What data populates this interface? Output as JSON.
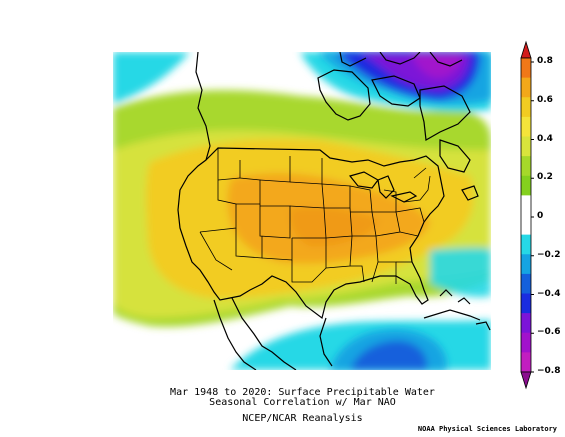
{
  "title_line1": "Mar 1948 to 2020: Surface Precipitable Water",
  "title_line2": "Seasonal Correlation w/ Mar NAO",
  "dataset": "NCEP/NCAR Reanalysis",
  "credit": "NOAA Physical Sciences Laboratory",
  "colorbar": {
    "ticks": [
      "0.8",
      "0.6",
      "0.4",
      "0.2",
      "0",
      "−0.2",
      "−0.4",
      "−0.6",
      "−0.8"
    ],
    "colors": [
      "#d21c1c",
      "#f07818",
      "#f3a81a",
      "#f2cc22",
      "#f4e43a",
      "#d8e43c",
      "#a6d82a",
      "#84d01e",
      "#ffffff",
      "#ffffff",
      "#26d8e6",
      "#15a4e2",
      "#1460dc",
      "#1a2ce0",
      "#7c14d8",
      "#a212cc",
      "#c21ec0",
      "#8a0e8e"
    ]
  }
}
